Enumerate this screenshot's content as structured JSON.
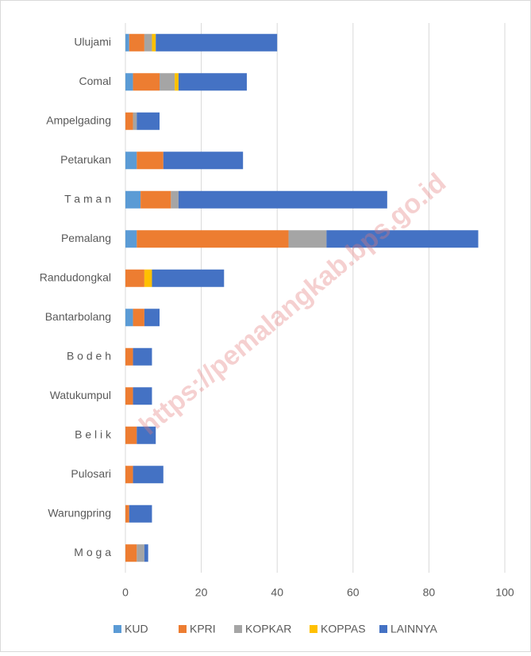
{
  "chart_data": {
    "type": "bar",
    "orientation": "horizontal",
    "stacked": true,
    "categories": [
      "Ulujami",
      "Comal",
      "Ampelgading",
      "Petarukan",
      "T a m a n",
      "Pemalang",
      "Randudongkal",
      "Bantarbolang",
      "B o d e h",
      "Watukumpul",
      "B e l i k",
      "Pulosari",
      "Warungpring",
      "M o g a"
    ],
    "series": [
      {
        "name": "KUD",
        "color": "#5b9bd5",
        "values": [
          1,
          2,
          0,
          3,
          4,
          3,
          0,
          2,
          0,
          0,
          0,
          0,
          0,
          0
        ]
      },
      {
        "name": "KPRI",
        "color": "#ed7d31",
        "values": [
          4,
          7,
          2,
          7,
          8,
          40,
          5,
          3,
          2,
          2,
          3,
          2,
          1,
          3
        ]
      },
      {
        "name": "KOPKAR",
        "color": "#a5a5a5",
        "values": [
          2,
          4,
          1,
          0,
          2,
          10,
          0,
          0,
          0,
          0,
          0,
          0,
          0,
          2
        ]
      },
      {
        "name": "KOPPAS",
        "color": "#ffc000",
        "values": [
          1,
          1,
          0,
          0,
          0,
          0,
          2,
          0,
          0,
          0,
          0,
          0,
          0,
          0
        ]
      },
      {
        "name": "LAINNYA",
        "color": "#4472c4",
        "values": [
          32,
          18,
          6,
          21,
          55,
          40,
          19,
          4,
          5,
          5,
          5,
          8,
          6,
          1
        ]
      }
    ],
    "xlim": [
      0,
      100
    ],
    "xticks": [
      0,
      20,
      40,
      60,
      80,
      100
    ],
    "grid": true,
    "legend": "bottom",
    "watermark": "https://pemalangkab.bps.go.id"
  }
}
